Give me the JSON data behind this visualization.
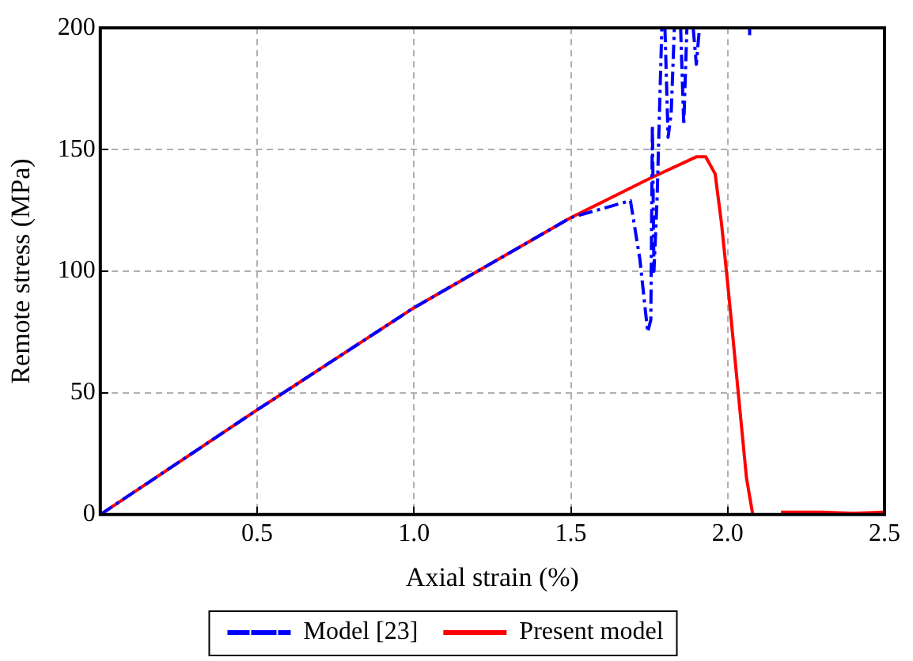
{
  "chart_data": {
    "type": "line",
    "xlabel": "Axial strain (%)",
    "ylabel": "Remote stress (MPa)",
    "xlim": [
      0,
      2.5
    ],
    "xticks": [
      {
        "value": 0,
        "label": null
      },
      0.5,
      {
        "value": 1,
        "label": "1.0"
      },
      1.5,
      {
        "value": 2,
        "label": "2.0"
      },
      2.5
    ],
    "ylim": [
      0,
      200
    ],
    "yticks": [
      0,
      50,
      100,
      150,
      200
    ],
    "grid": true,
    "legend": "bottom",
    "marker": "none",
    "series": [
      {
        "name": "Model [23]",
        "color": "#0000ff",
        "line_style": "dashed",
        "x": [
          0,
          0.5,
          1.0,
          1.5,
          1.69,
          1.72,
          1.745,
          1.755,
          1.76,
          1.765,
          1.775,
          1.79,
          1.795,
          1.8,
          1.81,
          1.82,
          1.83,
          1.84,
          1.85,
          1.86,
          1.87,
          1.88,
          1.89,
          1.9,
          1.91,
          1.95,
          2.07,
          2.07
        ],
        "values": [
          0,
          43,
          85,
          122,
          129,
          105,
          75,
          80,
          160,
          100,
          130,
          200,
          null,
          200,
          155,
          165,
          200,
          null,
          200,
          160,
          200,
          null,
          200,
          185,
          200,
          null,
          200,
          197
        ]
      },
      {
        "name": "Present model",
        "color": "#ff0000",
        "line_style": "solid",
        "x": [
          0,
          0.5,
          1.0,
          1.5,
          1.75,
          1.9,
          1.93,
          1.96,
          1.98,
          2.0,
          2.03,
          2.06,
          2.08,
          2.12,
          2.17,
          2.3,
          2.4,
          2.5
        ],
        "values": [
          0,
          43,
          85,
          122,
          138,
          147,
          147,
          140,
          120,
          95,
          55,
          15,
          0,
          null,
          1,
          1,
          0.5,
          1
        ]
      }
    ]
  }
}
